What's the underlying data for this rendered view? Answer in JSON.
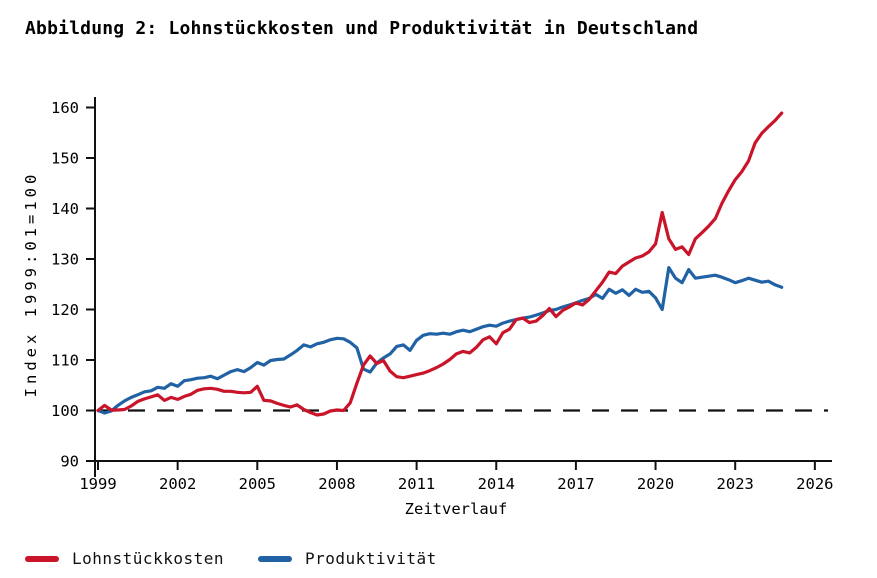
{
  "title": "Abbildung 2: Lohnstückkosten und Produktivität in Deutschland",
  "chart_data": {
    "type": "line",
    "title": "Abbildung 2: Lohnstückkosten und Produktivität in Deutschland",
    "xlabel": "Zeitverlauf",
    "ylabel": "Index 1999:01=100",
    "x_ticks": [
      1999,
      2002,
      2005,
      2008,
      2011,
      2014,
      2017,
      2020,
      2023,
      2026
    ],
    "y_ticks": [
      90,
      100,
      110,
      120,
      130,
      140,
      150,
      160
    ],
    "xlim": [
      1999,
      2026.7
    ],
    "ylim": [
      90,
      160
    ],
    "grid": "off",
    "legend_position": "bottom-left",
    "reference_line": {
      "y": 100,
      "style": "dashed",
      "color": "#111111"
    },
    "axis_color": "#111111",
    "series": [
      {
        "name": "Produktivität",
        "color": "#2062a4",
        "points": [
          [
            1999.0,
            100.0
          ],
          [
            1999.25,
            99.5
          ],
          [
            1999.5,
            99.9
          ],
          [
            1999.75,
            101.0
          ],
          [
            2000.0,
            101.9
          ],
          [
            2000.25,
            102.6
          ],
          [
            2000.5,
            103.1
          ],
          [
            2000.75,
            103.7
          ],
          [
            2001.0,
            103.9
          ],
          [
            2001.25,
            104.6
          ],
          [
            2001.5,
            104.4
          ],
          [
            2001.75,
            105.3
          ],
          [
            2002.0,
            104.8
          ],
          [
            2002.25,
            105.9
          ],
          [
            2002.5,
            106.1
          ],
          [
            2002.75,
            106.4
          ],
          [
            2003.0,
            106.5
          ],
          [
            2003.25,
            106.8
          ],
          [
            2003.5,
            106.3
          ],
          [
            2003.75,
            107.0
          ],
          [
            2004.0,
            107.7
          ],
          [
            2004.25,
            108.1
          ],
          [
            2004.5,
            107.7
          ],
          [
            2004.75,
            108.5
          ],
          [
            2005.0,
            109.5
          ],
          [
            2005.25,
            109.0
          ],
          [
            2005.5,
            109.9
          ],
          [
            2005.75,
            110.1
          ],
          [
            2006.0,
            110.2
          ],
          [
            2006.25,
            111.0
          ],
          [
            2006.5,
            111.9
          ],
          [
            2006.75,
            113.0
          ],
          [
            2007.0,
            112.6
          ],
          [
            2007.25,
            113.2
          ],
          [
            2007.5,
            113.5
          ],
          [
            2007.75,
            114.0
          ],
          [
            2008.0,
            114.3
          ],
          [
            2008.25,
            114.2
          ],
          [
            2008.5,
            113.5
          ],
          [
            2008.75,
            112.4
          ],
          [
            2009.0,
            108.2
          ],
          [
            2009.25,
            107.6
          ],
          [
            2009.5,
            109.4
          ],
          [
            2009.75,
            110.4
          ],
          [
            2010.0,
            111.2
          ],
          [
            2010.25,
            112.7
          ],
          [
            2010.5,
            113.0
          ],
          [
            2010.75,
            111.9
          ],
          [
            2011.0,
            113.9
          ],
          [
            2011.25,
            114.9
          ],
          [
            2011.5,
            115.2
          ],
          [
            2011.75,
            115.1
          ],
          [
            2012.0,
            115.3
          ],
          [
            2012.25,
            115.1
          ],
          [
            2012.5,
            115.6
          ],
          [
            2012.75,
            115.9
          ],
          [
            2013.0,
            115.6
          ],
          [
            2013.25,
            116.1
          ],
          [
            2013.5,
            116.6
          ],
          [
            2013.75,
            116.9
          ],
          [
            2014.0,
            116.7
          ],
          [
            2014.25,
            117.3
          ],
          [
            2014.5,
            117.7
          ],
          [
            2014.75,
            118.0
          ],
          [
            2015.0,
            118.3
          ],
          [
            2015.25,
            118.5
          ],
          [
            2015.5,
            118.9
          ],
          [
            2015.75,
            119.3
          ],
          [
            2016.0,
            119.8
          ],
          [
            2016.25,
            120.0
          ],
          [
            2016.5,
            120.5
          ],
          [
            2016.75,
            120.9
          ],
          [
            2017.0,
            121.3
          ],
          [
            2017.25,
            121.8
          ],
          [
            2017.5,
            122.2
          ],
          [
            2017.75,
            123.0
          ],
          [
            2018.0,
            122.2
          ],
          [
            2018.25,
            124.0
          ],
          [
            2018.5,
            123.2
          ],
          [
            2018.75,
            123.9
          ],
          [
            2019.0,
            122.8
          ],
          [
            2019.25,
            124.0
          ],
          [
            2019.5,
            123.4
          ],
          [
            2019.75,
            123.6
          ],
          [
            2020.0,
            122.3
          ],
          [
            2020.25,
            120.0
          ],
          [
            2020.5,
            128.3
          ],
          [
            2020.75,
            126.2
          ],
          [
            2021.0,
            125.3
          ],
          [
            2021.25,
            127.9
          ],
          [
            2021.5,
            126.2
          ],
          [
            2021.75,
            126.4
          ],
          [
            2022.0,
            126.6
          ],
          [
            2022.25,
            126.8
          ],
          [
            2022.5,
            126.4
          ],
          [
            2022.75,
            125.9
          ],
          [
            2023.0,
            125.3
          ],
          [
            2023.25,
            125.7
          ],
          [
            2023.5,
            126.2
          ],
          [
            2023.75,
            125.8
          ],
          [
            2024.0,
            125.4
          ],
          [
            2024.25,
            125.6
          ],
          [
            2024.5,
            124.9
          ],
          [
            2024.75,
            124.4
          ]
        ]
      },
      {
        "name": "Lohnstückkosten",
        "color": "#c9142a",
        "points": [
          [
            1999.0,
            100.0
          ],
          [
            1999.25,
            101.0
          ],
          [
            1999.5,
            100.1
          ],
          [
            1999.75,
            100.1
          ],
          [
            2000.0,
            100.2
          ],
          [
            2000.25,
            100.9
          ],
          [
            2000.5,
            101.8
          ],
          [
            2000.75,
            102.3
          ],
          [
            2001.0,
            102.7
          ],
          [
            2001.25,
            103.1
          ],
          [
            2001.5,
            102.0
          ],
          [
            2001.75,
            102.6
          ],
          [
            2002.0,
            102.2
          ],
          [
            2002.25,
            102.8
          ],
          [
            2002.5,
            103.2
          ],
          [
            2002.75,
            104.0
          ],
          [
            2003.0,
            104.3
          ],
          [
            2003.25,
            104.4
          ],
          [
            2003.5,
            104.2
          ],
          [
            2003.75,
            103.8
          ],
          [
            2004.0,
            103.8
          ],
          [
            2004.25,
            103.6
          ],
          [
            2004.5,
            103.5
          ],
          [
            2004.75,
            103.6
          ],
          [
            2005.0,
            104.8
          ],
          [
            2005.25,
            102.0
          ],
          [
            2005.5,
            101.9
          ],
          [
            2005.75,
            101.4
          ],
          [
            2006.0,
            101.0
          ],
          [
            2006.25,
            100.7
          ],
          [
            2006.5,
            101.1
          ],
          [
            2006.75,
            100.2
          ],
          [
            2007.0,
            99.6
          ],
          [
            2007.25,
            99.1
          ],
          [
            2007.5,
            99.3
          ],
          [
            2007.75,
            99.9
          ],
          [
            2008.0,
            100.1
          ],
          [
            2008.25,
            100.0
          ],
          [
            2008.5,
            101.5
          ],
          [
            2008.75,
            105.4
          ],
          [
            2009.0,
            109.0
          ],
          [
            2009.25,
            110.8
          ],
          [
            2009.5,
            109.3
          ],
          [
            2009.75,
            109.9
          ],
          [
            2010.0,
            107.8
          ],
          [
            2010.25,
            106.7
          ],
          [
            2010.5,
            106.5
          ],
          [
            2010.75,
            106.8
          ],
          [
            2011.0,
            107.1
          ],
          [
            2011.25,
            107.4
          ],
          [
            2011.5,
            107.9
          ],
          [
            2011.75,
            108.5
          ],
          [
            2012.0,
            109.2
          ],
          [
            2012.25,
            110.1
          ],
          [
            2012.5,
            111.2
          ],
          [
            2012.75,
            111.7
          ],
          [
            2013.0,
            111.4
          ],
          [
            2013.25,
            112.5
          ],
          [
            2013.5,
            114.0
          ],
          [
            2013.75,
            114.6
          ],
          [
            2014.0,
            113.2
          ],
          [
            2014.25,
            115.4
          ],
          [
            2014.5,
            116.1
          ],
          [
            2014.75,
            118.0
          ],
          [
            2015.0,
            118.3
          ],
          [
            2015.25,
            117.4
          ],
          [
            2015.5,
            117.7
          ],
          [
            2015.75,
            118.8
          ],
          [
            2016.0,
            120.2
          ],
          [
            2016.25,
            118.6
          ],
          [
            2016.5,
            119.8
          ],
          [
            2016.75,
            120.5
          ],
          [
            2017.0,
            121.3
          ],
          [
            2017.25,
            120.9
          ],
          [
            2017.5,
            122.0
          ],
          [
            2017.75,
            123.7
          ],
          [
            2018.0,
            125.4
          ],
          [
            2018.25,
            127.4
          ],
          [
            2018.5,
            127.1
          ],
          [
            2018.75,
            128.6
          ],
          [
            2019.0,
            129.4
          ],
          [
            2019.25,
            130.2
          ],
          [
            2019.5,
            130.6
          ],
          [
            2019.75,
            131.4
          ],
          [
            2020.0,
            133.0
          ],
          [
            2020.25,
            139.2
          ],
          [
            2020.5,
            134.0
          ],
          [
            2020.75,
            131.9
          ],
          [
            2021.0,
            132.4
          ],
          [
            2021.25,
            130.9
          ],
          [
            2021.5,
            134.0
          ],
          [
            2021.75,
            135.2
          ],
          [
            2022.0,
            136.5
          ],
          [
            2022.25,
            138.0
          ],
          [
            2022.5,
            141.0
          ],
          [
            2022.75,
            143.5
          ],
          [
            2023.0,
            145.7
          ],
          [
            2023.25,
            147.3
          ],
          [
            2023.5,
            149.4
          ],
          [
            2023.75,
            153.0
          ],
          [
            2024.0,
            154.9
          ],
          [
            2024.25,
            156.2
          ],
          [
            2024.5,
            157.4
          ],
          [
            2024.75,
            158.9
          ]
        ]
      }
    ]
  },
  "legend": {
    "items": [
      {
        "label": "Lohnstückkosten",
        "color": "#c9142a"
      },
      {
        "label": "Produktivität",
        "color": "#2062a4"
      }
    ]
  }
}
